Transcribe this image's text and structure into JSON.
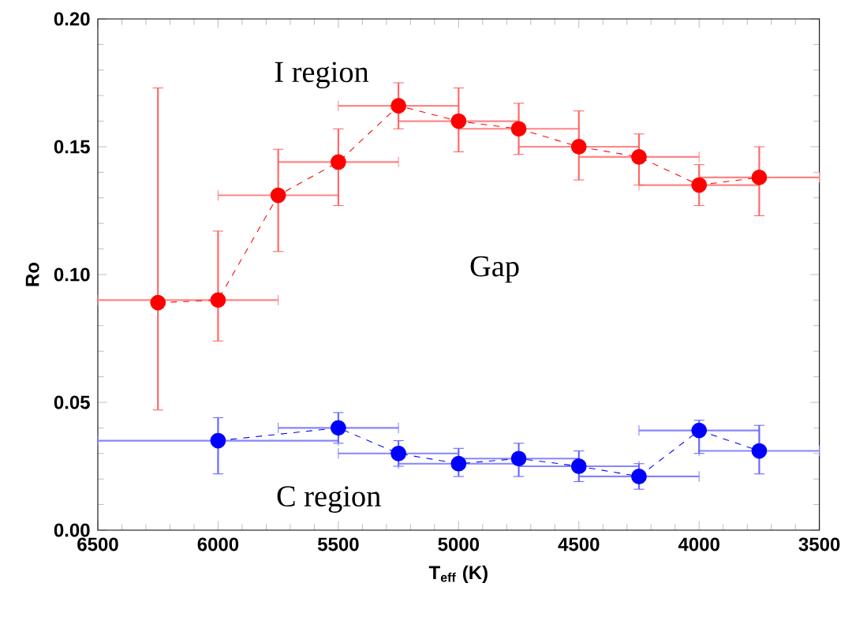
{
  "chart_data": {
    "type": "line",
    "xlabel": "T$_{eff}$ (K)",
    "ylabel": "Ro",
    "xlim": [
      6500,
      3500
    ],
    "xticks": [
      6500,
      6000,
      5500,
      5000,
      4500,
      4000,
      3500
    ],
    "ylim": [
      0,
      0.2
    ],
    "yticks": [
      {
        "value": 0,
        "label": "0.00"
      },
      {
        "value": 0.05,
        "label": "0.05"
      },
      {
        "value": 0.1,
        "label": "0.10"
      },
      {
        "value": 0.15,
        "label": "0.15"
      },
      {
        "value": 0.2,
        "label": "0.20"
      }
    ],
    "marker": "circle",
    "line_style": "dashed",
    "annotations": [
      "I region",
      "Gap",
      "C region"
    ],
    "series": [
      {
        "color": "#ff0000",
        "x": [
          6250,
          6000,
          5750,
          5500,
          5250,
          5000,
          4750,
          4500,
          4250,
          4000,
          3750
        ],
        "values": [
          0.089,
          0.09,
          0.131,
          0.144,
          0.166,
          0.16,
          0.157,
          0.15,
          0.146,
          0.135,
          0.138
        ],
        "errors": [
          [
            0.047,
            0.173
          ],
          [
            0.074,
            0.117
          ],
          [
            0.109,
            0.149
          ],
          [
            0.127,
            0.157
          ],
          [
            0.157,
            0.175
          ],
          [
            0.148,
            0.173
          ],
          [
            0.147,
            0.167
          ],
          [
            0.137,
            0.164
          ],
          [
            0.135,
            0.155
          ],
          [
            0.127,
            0.143
          ],
          [
            0.123,
            0.15
          ]
        ],
        "xerrors": [
          null,
          [
            5750,
            6500
          ],
          [
            5500,
            6000
          ],
          [
            5250,
            5750
          ],
          [
            5000,
            5500
          ],
          [
            4750,
            5250
          ],
          [
            4500,
            5000
          ],
          [
            4250,
            4750
          ],
          [
            4000,
            4500
          ],
          [
            3750,
            4250
          ],
          [
            3500,
            4000
          ]
        ]
      },
      {
        "color": "#0000ff",
        "x": [
          6000,
          5500,
          5250,
          5000,
          4750,
          4500,
          4250,
          4000,
          3750
        ],
        "values": [
          0.035,
          0.04,
          0.03,
          0.026,
          0.028,
          0.025,
          0.021,
          0.039,
          0.031
        ],
        "errors": [
          [
            0.022,
            0.044
          ],
          [
            0.034,
            0.046
          ],
          [
            0.025,
            0.035
          ],
          [
            0.021,
            0.032
          ],
          [
            0.021,
            0.034
          ],
          [
            0.019,
            0.031
          ],
          [
            0.016,
            0.026
          ],
          [
            0.03,
            0.043
          ],
          [
            0.022,
            0.041
          ]
        ],
        "xerrors": [
          [
            5500,
            6500
          ],
          [
            5250,
            5750
          ],
          [
            5000,
            5500
          ],
          [
            4750,
            5250
          ],
          [
            4500,
            5000
          ],
          [
            4250,
            4750
          ],
          [
            4000,
            4500
          ],
          [
            3750,
            4250
          ],
          [
            3500,
            4000
          ]
        ]
      }
    ]
  }
}
